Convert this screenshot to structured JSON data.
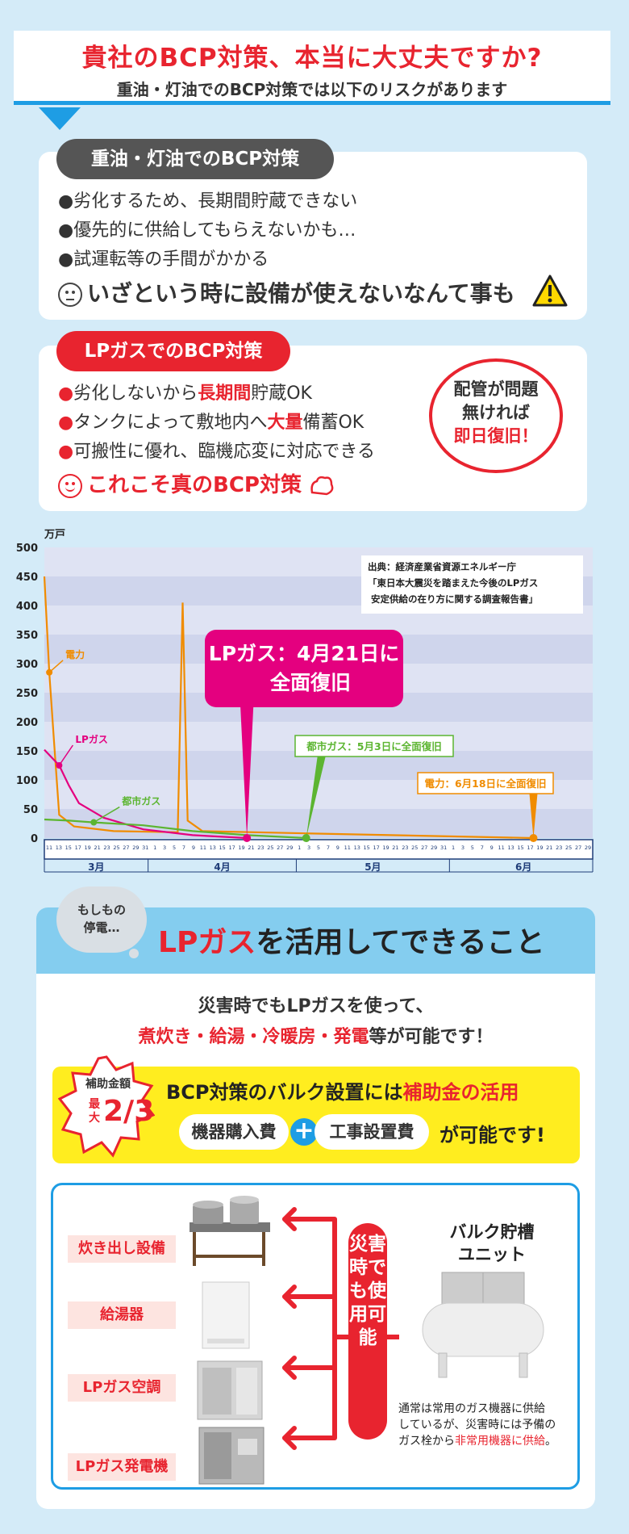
{
  "header": {
    "title": "貴社のBCP対策、本当に大丈夫ですか?",
    "subtitle": "重油・灯油でのBCP対策では以下のリスクがあります"
  },
  "oil_card": {
    "heading": "重油・灯油でのBCP対策",
    "items": [
      "●劣化するため、長期間貯蔵できない",
      "●優先的に供給してもらえないかも…",
      "●試運転等の手間がかかる"
    ],
    "conclusion": "いざという時に設備が使えないなんて事も"
  },
  "lp_card": {
    "heading": "LPガスでのBCP対策",
    "items": [
      {
        "pre": "劣化しないから",
        "em": "長期間",
        "post": "貯蔵OK"
      },
      {
        "pre": "タンクによって敷地内へ",
        "em": "大量",
        "post": "備蓄OK"
      },
      {
        "pre": "可搬性に優れ、臨機応変に対応できる",
        "em": "",
        "post": ""
      }
    ],
    "conclusion": "これこそ真のBCP対策",
    "badge_line1": "配管が問題",
    "badge_line2": "無ければ",
    "badge_line3": "即日復旧！"
  },
  "chart_data": {
    "type": "line",
    "ylabel": "万戸",
    "ylim": [
      0,
      500
    ],
    "yticks": [
      0,
      50,
      100,
      150,
      200,
      250,
      300,
      350,
      400,
      450,
      500
    ],
    "months": [
      "3月",
      "4月",
      "5月",
      "6月"
    ],
    "x_start_day": "3月11日",
    "source_lines": [
      "出典：経済産業省資源エネルギー庁",
      "「東日本大震災を踏まえた今後のLPガス",
      "安定供給の在り方に関する調査報告書」"
    ],
    "series": [
      {
        "name": "電力",
        "color": "#f08c00",
        "points": [
          [
            "3/11",
            450
          ],
          [
            "3/12",
            285
          ],
          [
            "3/13",
            160
          ],
          [
            "3/14",
            40
          ],
          [
            "3/17",
            20
          ],
          [
            "3/25",
            12
          ],
          [
            "4/7",
            10
          ],
          [
            "4/8",
            405
          ],
          [
            "4/9",
            30
          ],
          [
            "4/12",
            12
          ],
          [
            "5/3",
            8
          ],
          [
            "6/18",
            0
          ]
        ]
      },
      {
        "name": "LPガス",
        "color": "#e4007f",
        "points": [
          [
            "3/11",
            152
          ],
          [
            "3/14",
            125
          ],
          [
            "3/16",
            90
          ],
          [
            "3/18",
            60
          ],
          [
            "3/23",
            35
          ],
          [
            "3/31",
            15
          ],
          [
            "4/10",
            5
          ],
          [
            "4/21",
            0
          ]
        ]
      },
      {
        "name": "都市ガス",
        "color": "#5cb531",
        "points": [
          [
            "3/11",
            32
          ],
          [
            "3/16",
            30
          ],
          [
            "3/21",
            27
          ],
          [
            "3/31",
            22
          ],
          [
            "4/10",
            12
          ],
          [
            "4/21",
            5
          ],
          [
            "5/3",
            0
          ]
        ]
      }
    ],
    "callouts": [
      {
        "text": "LPガス：4月21日に全面復旧",
        "line1": "LPガス：4月21日に",
        "line2": "全面復旧",
        "date": "4/21",
        "color": "#e4007f"
      },
      {
        "text": "都市ガス：5月3日に全面復旧",
        "date": "5/3",
        "color": "#5cb531"
      },
      {
        "text": "電力：6月18日に全面復旧",
        "date": "6/18",
        "color": "#f08c00"
      }
    ],
    "day_ticks_text": "11 13 15 17 19 21 23 25 27 29 31 | 1 3 5 7 9 11 13 15 17 19 21 23 25 27 29 | 1 3 5 7 9 11 13 15 17 19 21 23 25 27 29 31 | 1 3 5 7 9 11 13 15 17 19 21 23 25 27 29"
  },
  "section2": {
    "bubble_line1": "もしもの",
    "bubble_line2": "停電…",
    "title_em": "LPガス",
    "title_rest": "を活用してできること",
    "lead1": "災害時でもLPガスを使って、",
    "lead2_em": "煮炊き・給湯・冷暖房・発電",
    "lead2_rest": "等が可能です！",
    "subsidy_badge_top": "補助金額",
    "subsidy_badge_side": "最大",
    "subsidy_badge_frac": "2/3",
    "subsidy_line_pre": "BCP対策のバルク設置には",
    "subsidy_line_em": "補助金の活用",
    "cost1": "機器購入費",
    "cost2": "工事設置費",
    "cost_tail": "が可能です!",
    "equipment": [
      "炊き出し設備",
      "給湯器",
      "LPガス空調",
      "LPガス発電機"
    ],
    "vertical_label": "災害時でも使用可能",
    "bulk_title_line1": "バルク貯槽",
    "bulk_title_line2": "ユニット",
    "note_line1": "通常は常用のガス機器に供給",
    "note_line2": "しているが、災害時には予備の",
    "note_line3_pre": "ガス栓から",
    "note_line3_em": "非常用機器に供給",
    "note_line3_post": "。"
  }
}
